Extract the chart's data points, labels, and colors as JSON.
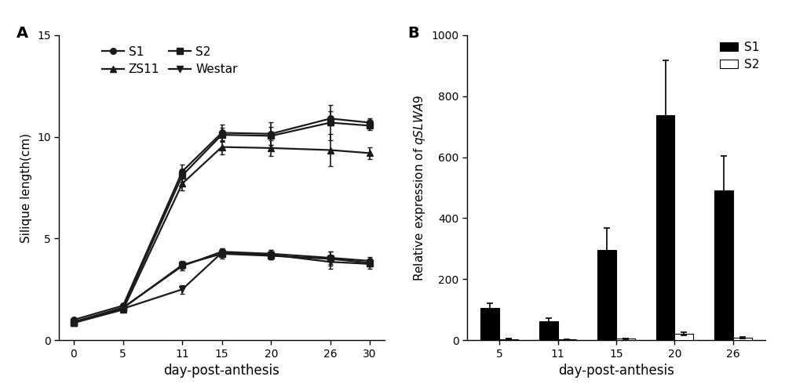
{
  "panel_A": {
    "x": [
      0,
      5,
      11,
      15,
      20,
      26,
      30
    ],
    "S1_y": [
      1.0,
      1.7,
      8.3,
      10.2,
      10.15,
      10.9,
      10.7
    ],
    "S1_err": [
      0.08,
      0.12,
      0.35,
      0.4,
      0.55,
      0.35,
      0.2
    ],
    "S2_y": [
      0.9,
      1.6,
      8.1,
      10.1,
      10.05,
      10.7,
      10.55
    ],
    "S2_err": [
      0.08,
      0.12,
      0.3,
      0.35,
      0.45,
      0.85,
      0.2
    ],
    "ZS11_y": [
      0.85,
      1.5,
      7.7,
      9.5,
      9.45,
      9.35,
      9.2
    ],
    "ZS11_err": [
      0.07,
      0.1,
      0.35,
      0.35,
      0.4,
      0.8,
      0.3
    ],
    "Westar_y": [
      0.88,
      1.55,
      2.5,
      4.3,
      4.2,
      3.85,
      3.75
    ],
    "Westar_err": [
      0.07,
      0.1,
      0.22,
      0.2,
      0.22,
      0.35,
      0.22
    ],
    "S1b_y": [
      0.87,
      1.6,
      3.65,
      4.35,
      4.25,
      4.05,
      3.9
    ],
    "S1b_err": [
      0.07,
      0.1,
      0.22,
      0.18,
      0.2,
      0.3,
      0.18
    ],
    "S2b_y": [
      0.86,
      1.58,
      3.7,
      4.25,
      4.15,
      4.0,
      3.8
    ],
    "S2b_err": [
      0.07,
      0.1,
      0.2,
      0.22,
      0.18,
      0.35,
      0.18
    ],
    "ylabel": "Silique length(cm)",
    "xlabel": "day-post-anthesis",
    "ylim": [
      0,
      15
    ],
    "yticks": [
      0,
      5,
      10,
      15
    ]
  },
  "panel_B": {
    "days": [
      5,
      11,
      15,
      20,
      26
    ],
    "S1_y": [
      105,
      62,
      295,
      738,
      490
    ],
    "S1_err": [
      15,
      10,
      72,
      180,
      115
    ],
    "S2_y": [
      4,
      2,
      5,
      22,
      9
    ],
    "S2_err": [
      1.0,
      0.8,
      1.5,
      5,
      2.5
    ],
    "ylabel": "Relative expression of qSLWA9",
    "xlabel": "day-post-anthesis",
    "ylim": [
      0,
      1000
    ],
    "yticks": [
      0,
      200,
      400,
      600,
      800,
      1000
    ],
    "bar_width": 0.32
  },
  "line_color": "#1a1a1a",
  "bg_color": "#ffffff",
  "label_fontsize": 11,
  "tick_fontsize": 10,
  "legend_fontsize": 11
}
